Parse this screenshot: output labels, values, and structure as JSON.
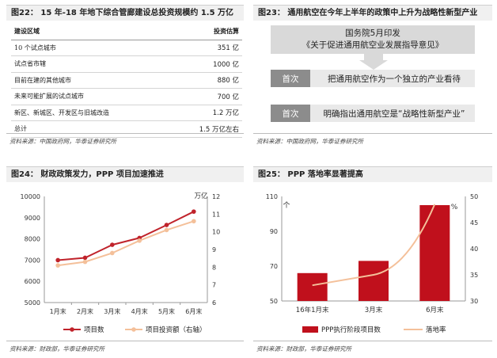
{
  "fig22": {
    "title": "图22： 15 年-18 年地下综合管廊建设总投资规模约 1.5 万亿",
    "headers": [
      "建设区域",
      "投资估算"
    ],
    "rows": [
      [
        "10 个试点城市",
        "351 亿"
      ],
      [
        "试点省市辖",
        "1000 亿"
      ],
      [
        "目前在建的其他城市",
        "880 亿"
      ],
      [
        "未来可能扩展的试点城市",
        "700 亿"
      ],
      [
        "新区、新城区、开发区与旧城改造",
        "1.2 万亿"
      ],
      [
        "总计",
        "1.5 万亿左右"
      ]
    ],
    "source": "资料来源：中国政府网，华泰证券研究所"
  },
  "fig23": {
    "title": "图23： 通用航空在今年上半年的政策中上升为战略性新型产业",
    "top_line1": "国务院5月印发",
    "top_line2": "《关于促进通用航空业发展指导意见》",
    "tag1": "首次",
    "text1": "把通用航空作为一个独立的产业看待",
    "tag2": "首次",
    "text2": "明确指出通用航空是“战略性新型产业”",
    "source": "资料来源：中国政府网，华泰证券研究所"
  },
  "fig24": {
    "title": "图24： 财政政策发力，PPP 项目加速推进",
    "source": "资料来源：财政部，华泰证券研究所"
  },
  "fig25": {
    "title": "图25： PPP 落地率显著提高",
    "source": "资料来源：财政部，华泰证券研究所"
  },
  "colors": {
    "line_dark": "#c0232b",
    "line_light": "#f4c09a",
    "bar": "#c0101c",
    "box_top": "#d9d9d9",
    "box_tag": "#8c8c8c",
    "box_body": "#e9e9e9"
  },
  "chart_data": [
    {
      "type": "line",
      "categories": [
        "1月末",
        "2月末",
        "3月末",
        "4月末",
        "5月末",
        "6月末"
      ],
      "series": [
        {
          "name": "项目数",
          "axis": "left",
          "values": [
            6997,
            7110,
            7721,
            8043,
            8654,
            9285
          ]
        },
        {
          "name": "项目投资额（右轴）",
          "axis": "right",
          "values": [
            8.1,
            8.3,
            8.8,
            9.5,
            10.1,
            10.6
          ]
        }
      ],
      "ylim_left": [
        5000,
        10000
      ],
      "yticks_left": [
        "5000",
        "6000",
        "7000",
        "8000",
        "9000",
        "10000"
      ],
      "ylim_right": [
        6,
        12
      ],
      "yticks_right": [
        "6",
        "7",
        "8",
        "9",
        "10",
        "11",
        "12"
      ],
      "ylabel_right": "万亿",
      "legend_position": "bottom"
    },
    {
      "type": "bar",
      "categories": [
        "16年1月末",
        "3月末",
        "6月末"
      ],
      "series": [
        {
          "name": "PPP执行阶段项目数",
          "kind": "bar",
          "axis": "left",
          "values": [
            66,
            73,
            105
          ]
        },
        {
          "name": "落地率",
          "kind": "line",
          "axis": "right",
          "values": [
            33,
            35,
            48.5
          ]
        }
      ],
      "ylim_left": [
        50,
        110
      ],
      "yticks_left": [
        "50",
        "70",
        "90",
        "110"
      ],
      "ylabel_left": "个",
      "ylim_right": [
        30,
        50
      ],
      "yticks_right": [
        "30",
        "35",
        "40",
        "45",
        "50"
      ],
      "ylabel_right": "%",
      "legend_position": "bottom"
    }
  ]
}
